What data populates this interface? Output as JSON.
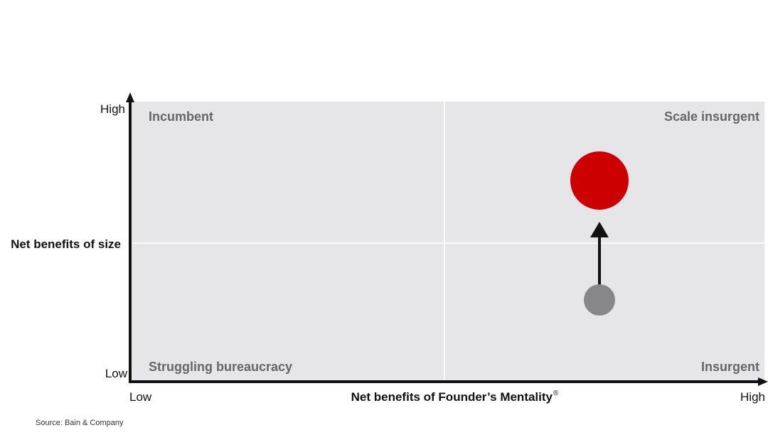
{
  "y_axis": {
    "label": "Net benefits of size",
    "high": "High",
    "low": "Low"
  },
  "x_axis": {
    "label": "Net benefits of Founder’s Mentality",
    "mark": "®",
    "low": "Low",
    "high": "High"
  },
  "quadrants": {
    "top_left": "Incumbent",
    "top_right": "Scale insurgent",
    "bottom_left": "Struggling bureaucracy",
    "bottom_right": "Insurgent"
  },
  "source": "Source: Bain & Company"
}
